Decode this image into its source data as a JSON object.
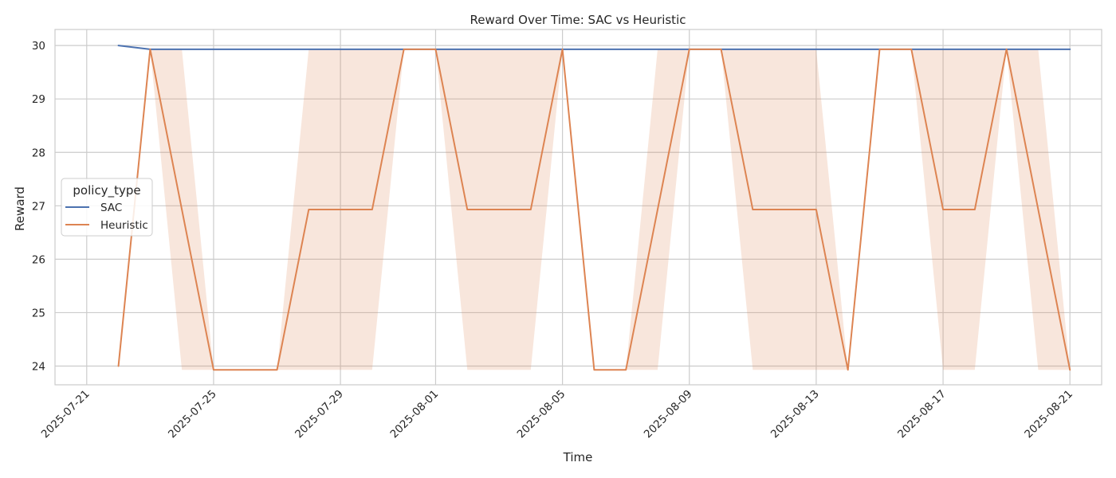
{
  "chart_data": {
    "type": "line",
    "title": "Reward Over Time: SAC vs Heuristic",
    "xlabel": "Time",
    "ylabel": "Reward",
    "x_tick_labels": [
      "2025-07-21",
      "2025-07-25",
      "2025-07-29",
      "2025-08-01",
      "2025-08-05",
      "2025-08-09",
      "2025-08-13",
      "2025-08-17",
      "2025-08-21"
    ],
    "y_tick_labels": [
      "24",
      "25",
      "26",
      "27",
      "28",
      "29",
      "30"
    ],
    "xlim": [
      "2025-07-20",
      "2025-08-22"
    ],
    "ylim": [
      23.65,
      30.3
    ],
    "grid": true,
    "legend": {
      "title": "policy_type",
      "placement": "center-left"
    },
    "x": [
      "2025-07-22",
      "2025-07-23",
      "2025-07-24",
      "2025-07-25",
      "2025-07-26",
      "2025-07-27",
      "2025-07-28",
      "2025-07-29",
      "2025-07-30",
      "2025-07-31",
      "2025-08-01",
      "2025-08-02",
      "2025-08-03",
      "2025-08-04",
      "2025-08-05",
      "2025-08-06",
      "2025-08-07",
      "2025-08-08",
      "2025-08-09",
      "2025-08-10",
      "2025-08-11",
      "2025-08-12",
      "2025-08-13",
      "2025-08-14",
      "2025-08-15",
      "2025-08-16",
      "2025-08-17",
      "2025-08-18",
      "2025-08-19",
      "2025-08-20",
      "2025-08-21"
    ],
    "series": [
      {
        "name": "SAC",
        "color": "#4c72b0",
        "values": [
          30.0,
          29.93,
          29.93,
          29.93,
          29.93,
          29.93,
          29.93,
          29.93,
          29.93,
          29.93,
          29.93,
          29.93,
          29.93,
          29.93,
          29.93,
          29.93,
          29.93,
          29.93,
          29.93,
          29.93,
          29.93,
          29.93,
          29.93,
          29.93,
          29.93,
          29.93,
          29.93,
          29.93,
          29.93,
          29.93,
          29.93
        ]
      },
      {
        "name": "Heuristic",
        "color": "#dd8452",
        "values": [
          24.0,
          29.93,
          26.93,
          23.93,
          23.93,
          23.93,
          26.93,
          26.93,
          26.93,
          29.93,
          29.93,
          26.93,
          26.93,
          26.93,
          29.93,
          23.93,
          23.93,
          26.93,
          29.93,
          29.93,
          26.93,
          26.93,
          26.93,
          23.93,
          29.93,
          29.93,
          26.93,
          26.93,
          29.93,
          26.93,
          23.93
        ],
        "band_lower": [
          24.0,
          29.93,
          23.93,
          23.93,
          23.93,
          23.93,
          23.93,
          23.93,
          23.93,
          29.93,
          29.93,
          23.93,
          23.93,
          23.93,
          29.93,
          23.93,
          23.93,
          23.93,
          29.93,
          29.93,
          23.93,
          23.93,
          23.93,
          23.93,
          29.93,
          29.93,
          23.93,
          23.93,
          29.93,
          23.93,
          23.93
        ],
        "band_upper": [
          24.0,
          29.93,
          29.93,
          23.93,
          23.93,
          23.93,
          29.93,
          29.93,
          29.93,
          29.93,
          29.93,
          29.93,
          29.93,
          29.93,
          29.93,
          23.93,
          23.93,
          29.93,
          29.93,
          29.93,
          29.93,
          29.93,
          29.93,
          23.93,
          29.93,
          29.93,
          29.93,
          29.93,
          29.93,
          29.93,
          23.93
        ]
      }
    ]
  }
}
